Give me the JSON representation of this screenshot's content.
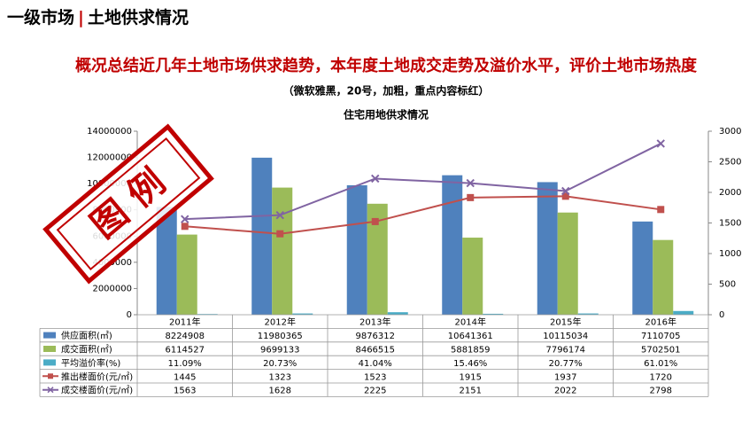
{
  "header": {
    "left": "一级市场",
    "sep": "|",
    "right": "土地供求情况"
  },
  "headline": "概况总结近几年土地市场供求趋势，本年度土地成交走势及溢价水平，评价土地市场热度",
  "note": "（微软雅黑，20号，加粗，重点内容标红）",
  "stamp": "图 例",
  "chart_data": {
    "type": "bar",
    "title": "住宅用地供求情况",
    "categories": [
      "2011年",
      "2012年",
      "2013年",
      "2014年",
      "2015年",
      "2016年"
    ],
    "ylim": [
      0,
      14000000
    ],
    "yticks": [
      0,
      2000000,
      4000000,
      6000000,
      8000000,
      10000000,
      12000000,
      14000000
    ],
    "y2lim": [
      0,
      3000
    ],
    "y2ticks": [
      0,
      500,
      1000,
      1500,
      2000,
      2500,
      3000
    ],
    "series": [
      {
        "name": "供应面积(㎡)",
        "color": "#4f81bd",
        "type": "bar",
        "values": [
          8224908,
          11980365,
          9876312,
          10641361,
          10115034,
          7110705
        ]
      },
      {
        "name": "成交面积(㎡)",
        "color": "#9bbb59",
        "type": "bar",
        "values": [
          6114527,
          9699133,
          8466515,
          5881859,
          7796174,
          5702501
        ]
      },
      {
        "name": "平均溢价率(%)",
        "color": "#4bacc6",
        "type": "bar",
        "axis": "y2",
        "values": [
          11.09,
          20.73,
          41.04,
          15.46,
          20.77,
          61.01
        ],
        "value_labels": [
          "11.09%",
          "20.73%",
          "41.04%",
          "15.46%",
          "20.77%",
          "61.01%"
        ]
      },
      {
        "name": "推出楼面价(元/㎡)",
        "color": "#c0504d",
        "type": "line",
        "marker": "square",
        "axis": "y2",
        "values": [
          1445,
          1323,
          1523,
          1915,
          1937,
          1720
        ]
      },
      {
        "name": "成交楼面价(元/㎡)",
        "color": "#8064a2",
        "type": "line",
        "marker": "x",
        "axis": "y2",
        "values": [
          1563,
          1628,
          2225,
          2151,
          2022,
          2798
        ]
      }
    ]
  }
}
